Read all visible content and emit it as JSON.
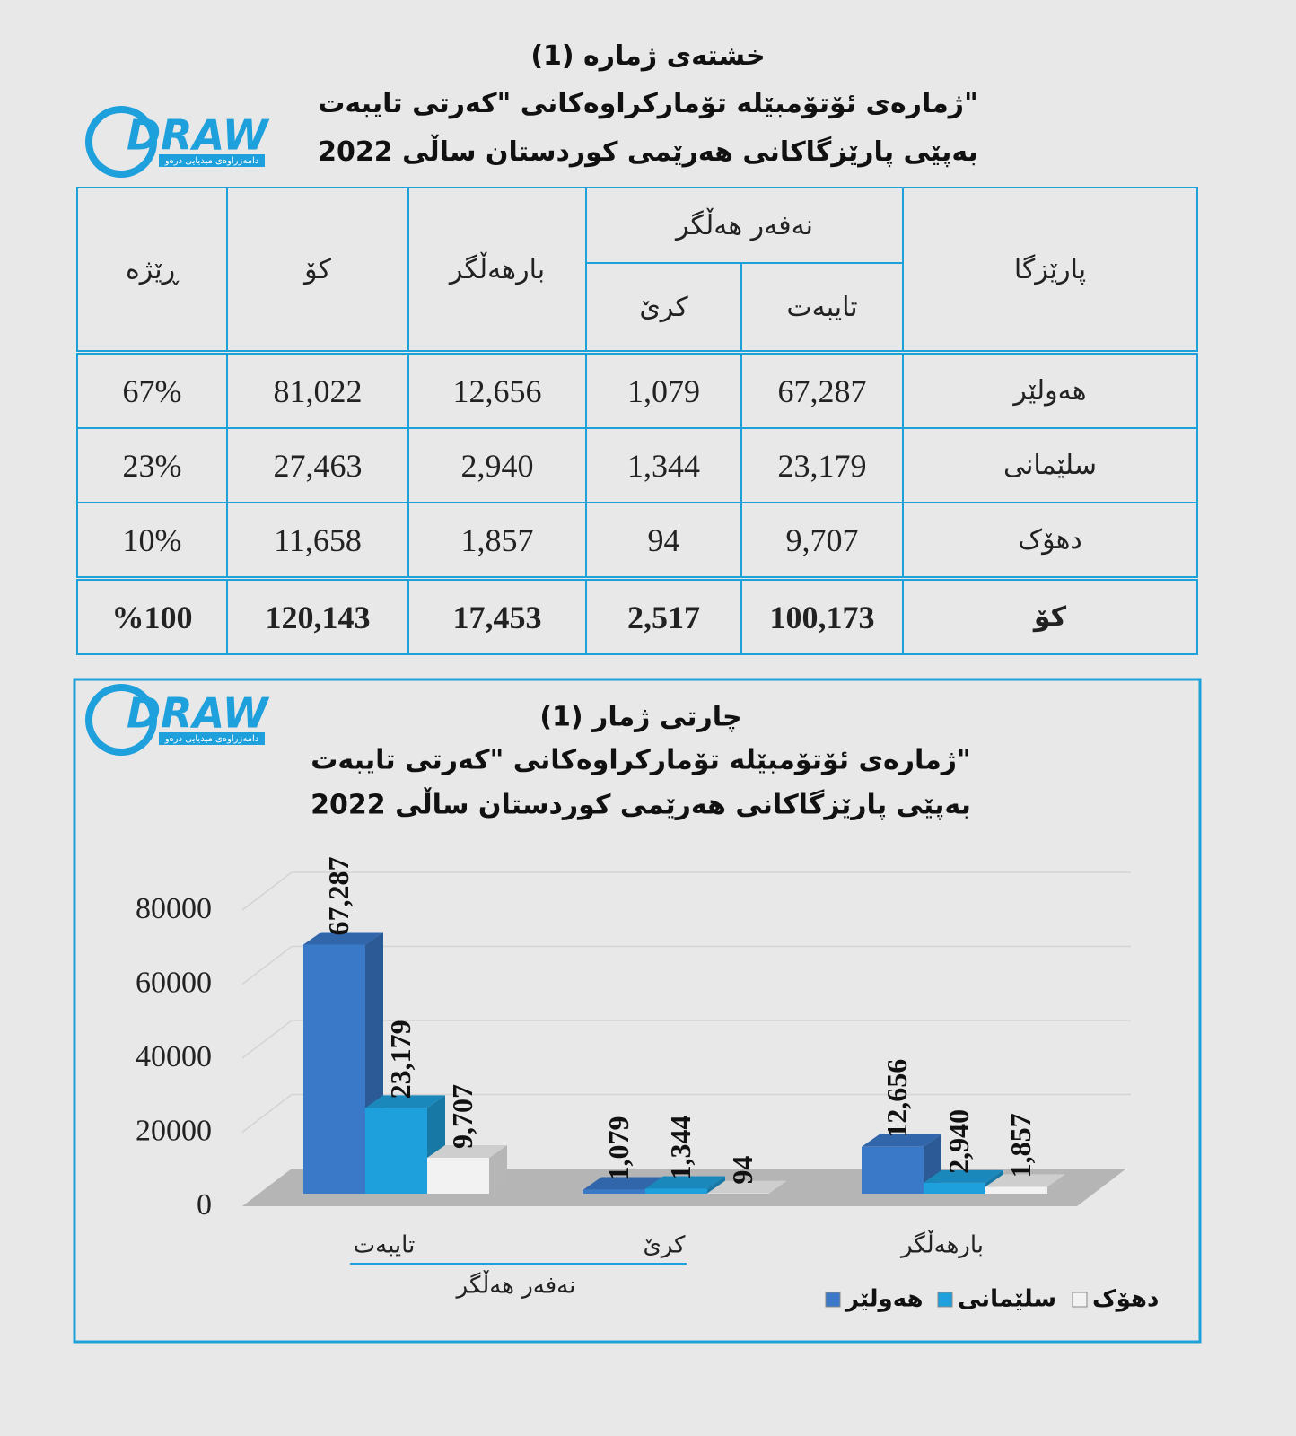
{
  "logo": {
    "name": "DRAW",
    "tagline": "دامەزراوەی میدیایی درەو"
  },
  "header": {
    "title": "خشتەی ژمارە (1)",
    "line2": "ژمارەی ئۆتۆمبێلە تۆمارکراوەکانی \"کەرتی تایبەت\"",
    "line3": "بەپێی پارێزگاکانی هەرێمی کوردستان ساڵی 2022"
  },
  "table": {
    "group_header": "نەفەر هەڵگر",
    "headers": [
      "پارێزگا",
      "تایبەت",
      "کرێ",
      "بارهەڵگر",
      "کۆ",
      "ڕێژە"
    ],
    "rows": [
      [
        "هەولێر",
        "67,287",
        "1,079",
        "12,656",
        "81,022",
        "67%"
      ],
      [
        "سلێمانی",
        "23,179",
        "1,344",
        "2,940",
        "27,463",
        "23%"
      ],
      [
        "دهۆک",
        "9,707",
        "94",
        "1,857",
        "11,658",
        "10%"
      ]
    ],
    "total": [
      "کۆ",
      "100,173",
      "2,517",
      "17,453",
      "120,143",
      "%100"
    ]
  },
  "chart_data": {
    "type": "bar",
    "title": "چارتی ژمار (1)",
    "subtitle": "ژمارەی ئۆتۆمبێلە تۆمارکراوەکانی \"کەرتی تایبەت\"",
    "subtitle2": "بەپێی پارێزگاکانی هەرێمی کوردستان ساڵی 2022",
    "categories": [
      "تایبەت",
      "کرێ",
      "بارهەڵگر"
    ],
    "group_label": "نەفەر هەڵگر",
    "series": [
      {
        "name": "هەولێر",
        "color": "#3a78c8",
        "values": [
          67287,
          1079,
          12656
        ],
        "value_labels": [
          "67,287",
          "1,079",
          "12,656"
        ]
      },
      {
        "name": "سلێمانی",
        "color": "#1ea0dc",
        "values": [
          23179,
          1344,
          2940
        ],
        "value_labels": [
          "23,179",
          "1,344",
          "2,940"
        ]
      },
      {
        "name": "دهۆک",
        "color": "#f2f2f2",
        "values": [
          9707,
          94,
          1857
        ],
        "value_labels": [
          "9,707",
          "94",
          "1,857"
        ]
      }
    ],
    "ylim": [
      0,
      80000
    ],
    "yticks": [
      0,
      20000,
      40000,
      60000,
      80000
    ],
    "grid": true,
    "legend": "bottom-right"
  }
}
